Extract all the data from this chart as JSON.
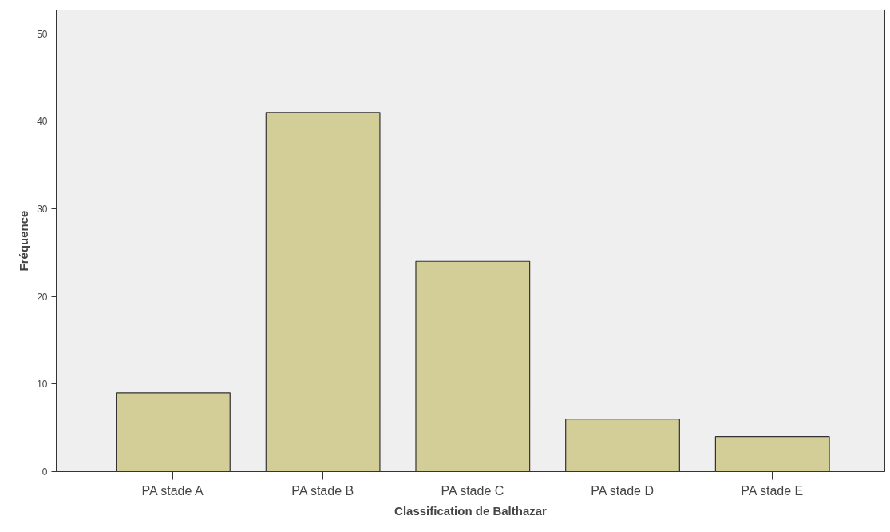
{
  "chart_data": {
    "type": "bar",
    "xlabel": "Classification de Balthazar",
    "ylabel": "Fréquence",
    "categories": [
      "PA stade A",
      "PA stade B",
      "PA stade C",
      "PA stade D",
      "PA stade E"
    ],
    "values": [
      9,
      41,
      24,
      6,
      4
    ],
    "color": "#d3ce97",
    "ylim": [
      0,
      52.7
    ],
    "yticks": [
      0,
      10,
      20,
      30,
      40,
      50
    ],
    "grid": false
  }
}
